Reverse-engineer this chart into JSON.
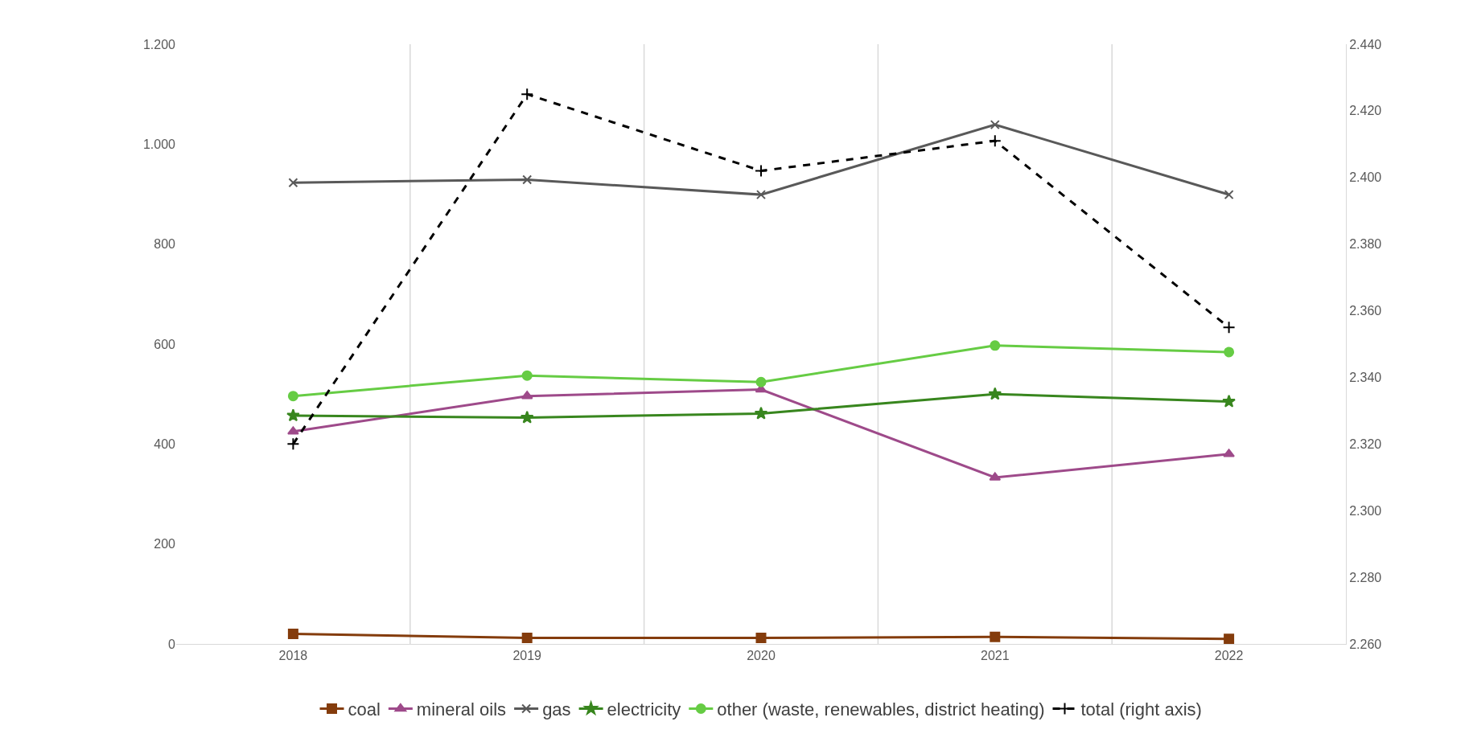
{
  "chart_data": {
    "type": "line",
    "categories": [
      "2018",
      "2019",
      "2020",
      "2021",
      "2022"
    ],
    "series": [
      {
        "name": "coal",
        "color": "#843c0c",
        "marker": "square",
        "values": [
          20,
          12,
          12,
          14,
          10
        ]
      },
      {
        "name": "mineral oils",
        "color": "#9e4a8a",
        "marker": "triangle",
        "values": [
          425,
          496,
          509,
          333,
          380
        ]
      },
      {
        "name": "gas",
        "color": "#595959",
        "marker": "cross",
        "values": [
          923,
          929,
          899,
          1039,
          899
        ]
      },
      {
        "name": "electricity",
        "color": "#38861e",
        "marker": "star",
        "values": [
          457,
          453,
          461,
          500,
          485
        ]
      },
      {
        "name": "other (waste, renewables, district heating)",
        "color": "#66cc44",
        "marker": "circle",
        "values": [
          496,
          537,
          524,
          597,
          584
        ]
      },
      {
        "name": "total (right axis)",
        "color": "#000000",
        "marker": "plus",
        "line_style": "dashed",
        "axis": "y2",
        "values": [
          2320,
          2425,
          2402,
          2411,
          2355
        ]
      }
    ],
    "ylim": [
      0,
      1200
    ],
    "yticks": [
      0,
      200,
      400,
      600,
      800,
      {
        "value": 1000,
        "label": "1.000"
      },
      {
        "value": 1200,
        "label": "1.200"
      }
    ],
    "y2lim": [
      2260,
      2440
    ],
    "y2ticks": [
      {
        "value": 2260,
        "label": "2.260"
      },
      {
        "value": 2280,
        "label": "2.280"
      },
      {
        "value": 2300,
        "label": "2.300"
      },
      {
        "value": 2320,
        "label": "2.320"
      },
      {
        "value": 2340,
        "label": "2.340"
      },
      {
        "value": 2360,
        "label": "2.360"
      },
      {
        "value": 2380,
        "label": "2.380"
      },
      {
        "value": 2400,
        "label": "2.400"
      },
      {
        "value": 2420,
        "label": "2.420"
      },
      {
        "value": 2440,
        "label": "2.440"
      }
    ],
    "grid": "x",
    "legend": "bottom"
  }
}
